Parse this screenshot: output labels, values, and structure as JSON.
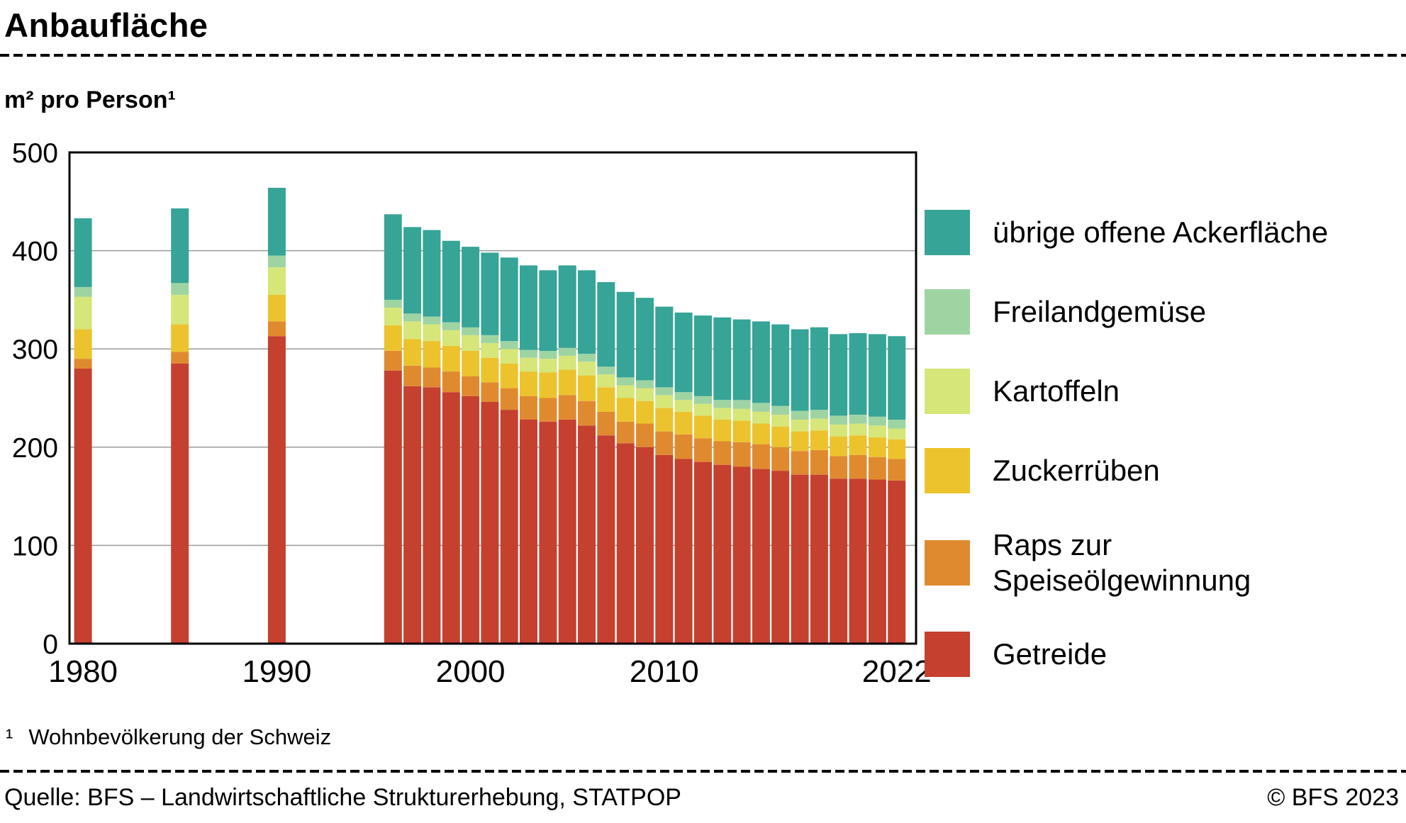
{
  "footnote": {
    "marker": "¹",
    "text": "Wohnbevölkerung der Schweiz"
  },
  "footer": {
    "source": "Quelle: BFS – Landwirtschaftliche Strukturerhebung, STATPOP",
    "copyright": "© BFS 2023"
  },
  "chart_data": {
    "type": "bar",
    "stacked": true,
    "title": "Anbaufläche",
    "ylabel": "m² pro Person¹",
    "xlabel": "",
    "ylim": [
      0,
      500
    ],
    "yticks": [
      0,
      100,
      200,
      300,
      400,
      500
    ],
    "grid": "horizontal",
    "legend_position": "right",
    "xticks": [
      {
        "year": 1980,
        "label": "1980"
      },
      {
        "year": 1990,
        "label": "1990"
      },
      {
        "year": 2000,
        "label": "2000"
      },
      {
        "year": 2010,
        "label": "2010"
      },
      {
        "year": 2022,
        "label": "2022"
      }
    ],
    "years": [
      1980,
      1985,
      1990,
      1996,
      1997,
      1998,
      1999,
      2000,
      2001,
      2002,
      2003,
      2004,
      2005,
      2006,
      2007,
      2008,
      2009,
      2010,
      2011,
      2012,
      2013,
      2014,
      2015,
      2016,
      2017,
      2018,
      2019,
      2020,
      2021,
      2022
    ],
    "series": [
      {
        "name": "Getreide",
        "color": "#c5402f",
        "values": [
          280,
          285,
          313,
          278,
          262,
          261,
          256,
          252,
          246,
          238,
          228,
          226,
          228,
          222,
          212,
          204,
          200,
          192,
          188,
          185,
          182,
          180,
          178,
          176,
          172,
          172,
          168,
          168,
          167,
          166
        ]
      },
      {
        "name": "Raps zur Speiseölgewinnung",
        "color": "#e08a30",
        "values": [
          10,
          12,
          15,
          20,
          21,
          20,
          21,
          20,
          20,
          22,
          24,
          24,
          25,
          25,
          24,
          22,
          24,
          24,
          25,
          24,
          24,
          25,
          25,
          24,
          24,
          25,
          23,
          24,
          23,
          22
        ]
      },
      {
        "name": "Zuckerrüben",
        "color": "#ecc32d",
        "values": [
          30,
          28,
          27,
          26,
          27,
          27,
          26,
          26,
          25,
          25,
          25,
          26,
          26,
          26,
          25,
          24,
          23,
          24,
          23,
          23,
          22,
          22,
          21,
          21,
          20,
          20,
          20,
          20,
          20,
          20
        ]
      },
      {
        "name": "Kartoffeln",
        "color": "#d6e678",
        "values": [
          33,
          30,
          28,
          18,
          18,
          17,
          16,
          16,
          15,
          15,
          14,
          14,
          14,
          14,
          13,
          13,
          13,
          13,
          12,
          12,
          12,
          12,
          12,
          12,
          12,
          12,
          12,
          12,
          12,
          11
        ]
      },
      {
        "name": "Freilandgemüse",
        "color": "#9ed4a2",
        "values": [
          10,
          12,
          12,
          8,
          8,
          8,
          8,
          8,
          8,
          8,
          8,
          8,
          8,
          8,
          8,
          8,
          8,
          8,
          8,
          8,
          8,
          9,
          9,
          9,
          9,
          9,
          9,
          9,
          9,
          9
        ]
      },
      {
        "name": "übrige offene Ackerfläche",
        "color": "#36a496",
        "values": [
          70,
          76,
          69,
          87,
          88,
          88,
          83,
          82,
          84,
          85,
          86,
          82,
          84,
          85,
          86,
          87,
          84,
          82,
          81,
          82,
          84,
          82,
          83,
          83,
          83,
          84,
          83,
          83,
          84,
          85
        ]
      }
    ],
    "legend": [
      {
        "series": 5,
        "lines": [
          "übrige offene Ackerfläche"
        ]
      },
      {
        "series": 4,
        "lines": [
          "Freilandgemüse"
        ]
      },
      {
        "series": 3,
        "lines": [
          "Kartoffeln"
        ]
      },
      {
        "series": 2,
        "lines": [
          "Zuckerrüben"
        ]
      },
      {
        "series": 1,
        "lines": [
          "Raps zur",
          "Speiseölgewinnung"
        ]
      },
      {
        "series": 0,
        "lines": [
          "Getreide"
        ]
      }
    ]
  }
}
